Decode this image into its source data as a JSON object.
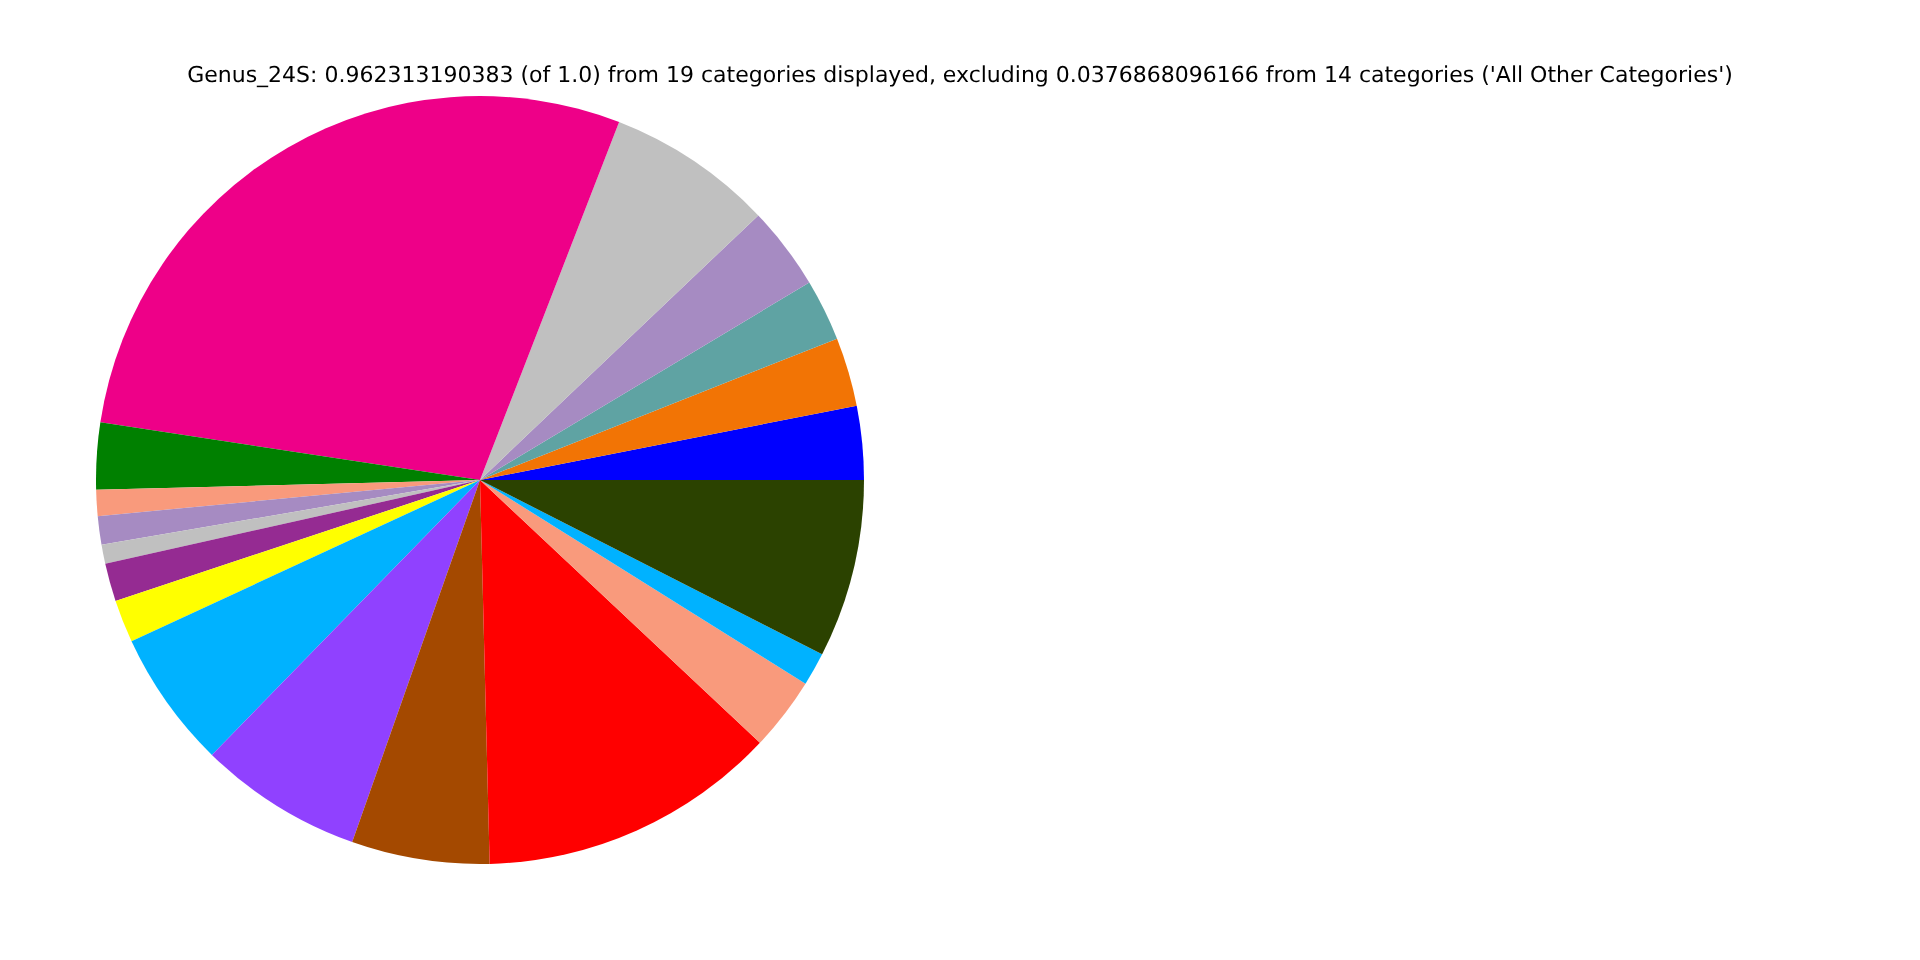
{
  "chart_data": {
    "type": "pie",
    "title": "Genus_24S: 0.962313190383 (of 1.0) from 19 categories displayed, excluding 0.0376868096166 from 14 categories ('All Other Categories')",
    "categories": [
      null,
      null,
      null,
      null,
      null,
      null,
      null,
      null,
      null,
      null,
      null,
      null,
      null,
      null,
      null,
      null,
      null,
      null,
      null
    ],
    "values": [
      3.1,
      2.9,
      2.6,
      3.5,
      7.0,
      28.5,
      2.8,
      1.1,
      1.2,
      0.8,
      1.6,
      1.8,
      5.8,
      6.9,
      5.8,
      12.6,
      3.1,
      1.4,
      7.5
    ],
    "colors": [
      "#0000ff",
      "#f27405",
      "#5fa3a3",
      "#a68bc2",
      "#c0c0c0",
      "#ee0088",
      "#008000",
      "#f99a7c",
      "#a68bc2",
      "#c0c0c0",
      "#952b92",
      "#ffff00",
      "#00b2ff",
      "#9041ff",
      "#a44900",
      "#ff0000",
      "#f99a7c",
      "#00b2ff",
      "#2b4200"
    ]
  }
}
